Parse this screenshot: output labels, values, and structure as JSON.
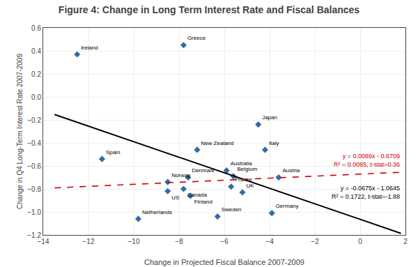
{
  "chart_data": {
    "type": "scatter",
    "title": "Figure 4: Change in Long Term Interest Rate and Fiscal Balances",
    "x_label": "Change in Projected Fiscal Balance 2007-2009",
    "y_label": "Change in Q4 Long-Term Interest Rate 2007-2009",
    "xlim": [
      -14,
      2
    ],
    "ylim": [
      -1.2,
      0.6
    ],
    "xticks": [
      -14,
      -12,
      -10,
      -8,
      -6,
      -4,
      -2,
      0,
      2
    ],
    "yticks": [
      {
        "value": -1.2,
        "label": "−1.2"
      },
      {
        "value": -1.0,
        "label": "−1.0"
      },
      {
        "value": -0.8,
        "label": "−0.8"
      },
      {
        "value": -0.6,
        "label": "−0.6"
      },
      {
        "value": -0.4,
        "label": "−0.4"
      },
      {
        "value": -0.2,
        "label": "−0.2"
      },
      {
        "value": 0.0,
        "label": "0.0"
      },
      {
        "value": 0.2,
        "label": "0.2"
      },
      {
        "value": 0.4,
        "label": "0.4"
      },
      {
        "value": 0.6,
        "label": "0.6"
      }
    ],
    "grid": true,
    "series": [
      {
        "type": "scatter",
        "color": "#2E6EA6",
        "marker": "diamond",
        "x": [
          -12.5,
          -7.8,
          -11.4,
          -9.8,
          -8.5,
          -8.5,
          -7.6,
          -7.8,
          -7.5,
          -7.2,
          -6.3,
          -5.9,
          -5.6,
          -5.7,
          -5.2,
          -4.5,
          -4.2,
          -3.6,
          -3.9
        ],
        "values": [
          0.37,
          0.45,
          -0.54,
          -1.06,
          -0.74,
          -0.82,
          -0.7,
          -0.8,
          -0.86,
          -0.46,
          -1.04,
          -0.64,
          -0.69,
          -0.78,
          -0.83,
          -0.24,
          -0.46,
          -0.7,
          -1.01
        ],
        "labels": [
          "Ireland",
          "Greece",
          "Spain",
          "Netherlands",
          "Norway",
          "US",
          "Denmark",
          "Canada",
          "Finland",
          "New Zealand",
          "Sweden",
          "Australia",
          "Belgium",
          "France",
          "UK",
          "Japan",
          "Italy",
          "Austria",
          "Germany"
        ]
      },
      {
        "type": "line",
        "color": "#000000",
        "line_style": "solid",
        "x": [
          -13.5,
          1.8
        ],
        "values": [
          -0.15325,
          -1.186
        ],
        "annotations": [
          "y = -0.0675x - 1.0645",
          "R² = 0.1722, t-stat=-1.88"
        ]
      },
      {
        "type": "line",
        "color": "#CC0000",
        "line_style": "dashed",
        "x": [
          -13.5,
          1.8
        ],
        "values": [
          -0.79105,
          -0.65488
        ],
        "annotations": [
          "y = 0.0089x - 0.6709",
          "R² = 0.0085, t-stat=0.36"
        ]
      }
    ]
  }
}
